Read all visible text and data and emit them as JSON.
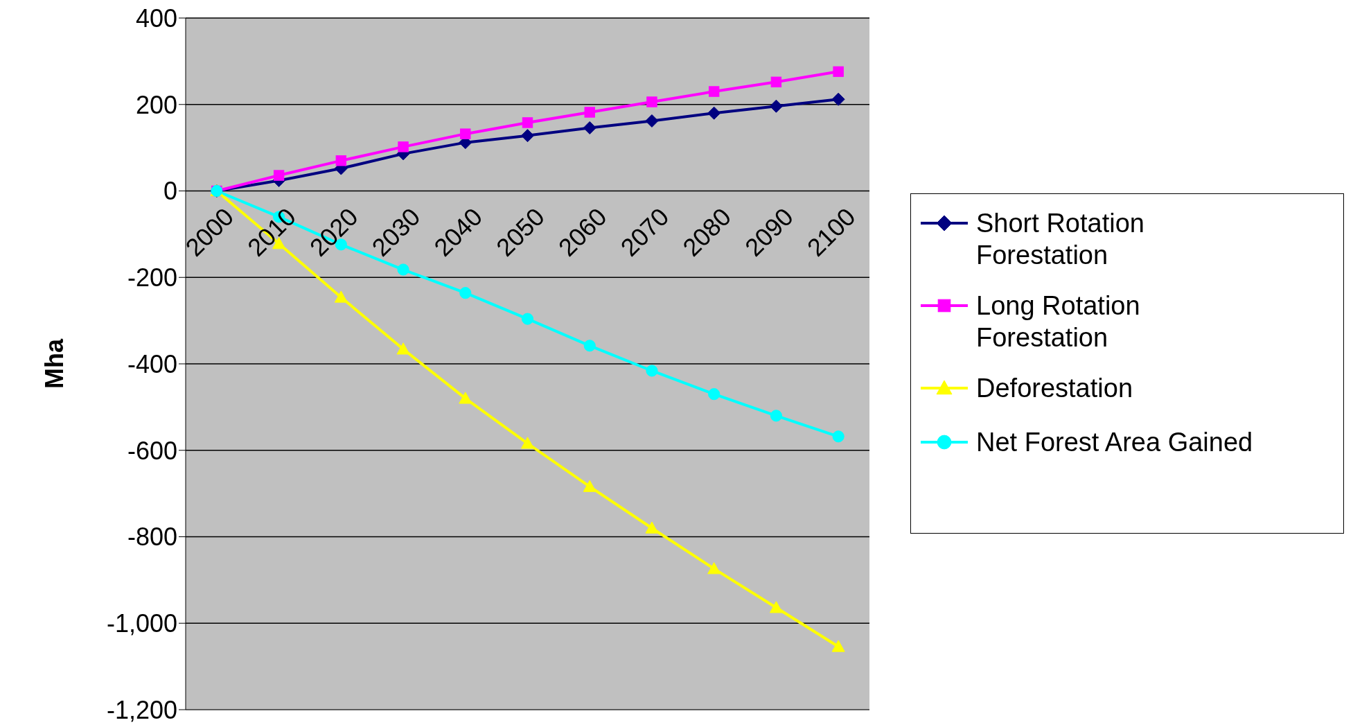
{
  "chart_data": {
    "type": "line",
    "ylabel": "Mha",
    "categories": [
      "2000",
      "2010",
      "2020",
      "2030",
      "2040",
      "2050",
      "2060",
      "2070",
      "2080",
      "2090",
      "2100"
    ],
    "series": [
      {
        "name": "Short Rotation Forestation",
        "color": "#000080",
        "marker": "diamond",
        "values": [
          0,
          24,
          52,
          86,
          112,
          128,
          146,
          162,
          180,
          196,
          212
        ]
      },
      {
        "name": "Long Rotation Forestation",
        "color": "#ff00ff",
        "marker": "square",
        "values": [
          0,
          36,
          70,
          102,
          132,
          158,
          182,
          206,
          230,
          252,
          276
        ]
      },
      {
        "name": "Deforestation",
        "color": "#ffff00",
        "marker": "triangle",
        "values": [
          0,
          -122,
          -246,
          -366,
          -480,
          -584,
          -684,
          -780,
          -874,
          -964,
          -1054
        ]
      },
      {
        "name": "Net Forest Area Gained",
        "color": "#00ffff",
        "marker": "circle",
        "values": [
          0,
          -60,
          -124,
          -182,
          -236,
          -296,
          -358,
          -416,
          -470,
          -520,
          -568
        ]
      }
    ],
    "ylim": [
      -1200,
      400
    ],
    "yticks": [
      {
        "value": -1200,
        "label": "-1,200"
      },
      {
        "value": -1000,
        "label": "-1,000"
      },
      -800,
      -600,
      -400,
      -200,
      0,
      200,
      400
    ],
    "grid": "y",
    "legend": "right"
  }
}
